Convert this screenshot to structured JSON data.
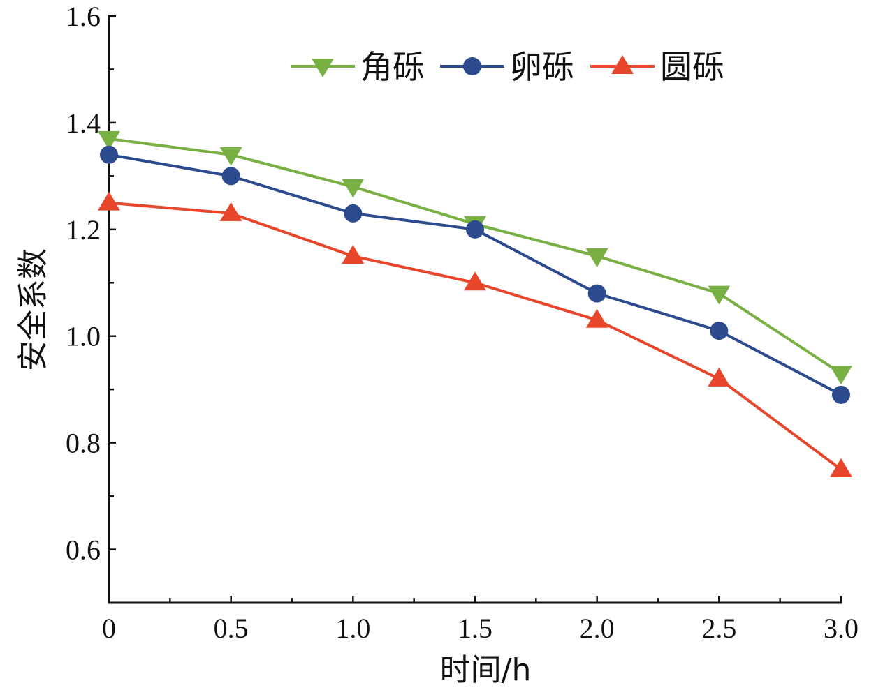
{
  "chart_data": {
    "type": "line",
    "title": "",
    "xlabel": "时间/h",
    "ylabel": "安全系数",
    "xlim": [
      0,
      3.0
    ],
    "ylim": [
      0.5,
      1.6
    ],
    "x": [
      0,
      0.5,
      1.0,
      1.5,
      2.0,
      2.5,
      3.0
    ],
    "xticks": [
      "0",
      "0.5",
      "1.0",
      "1.5",
      "2.0",
      "2.5",
      "3.0"
    ],
    "yticks": [
      "0.6",
      "0.8",
      "1.0",
      "1.2",
      "1.4",
      "1.6"
    ],
    "grid": false,
    "legend_position": "top-right",
    "series": [
      {
        "name": "角砾",
        "marker": "triangle-down",
        "color": "#78b043",
        "values": [
          1.37,
          1.34,
          1.28,
          1.21,
          1.15,
          1.08,
          0.93
        ]
      },
      {
        "name": "卵砾",
        "marker": "circle",
        "color": "#2b4b8e",
        "values": [
          1.34,
          1.3,
          1.23,
          1.2,
          1.08,
          1.01,
          0.89
        ]
      },
      {
        "name": "圆砾",
        "marker": "triangle-up",
        "color": "#e8462b",
        "values": [
          1.25,
          1.23,
          1.15,
          1.1,
          1.03,
          0.92,
          0.75
        ]
      }
    ]
  }
}
